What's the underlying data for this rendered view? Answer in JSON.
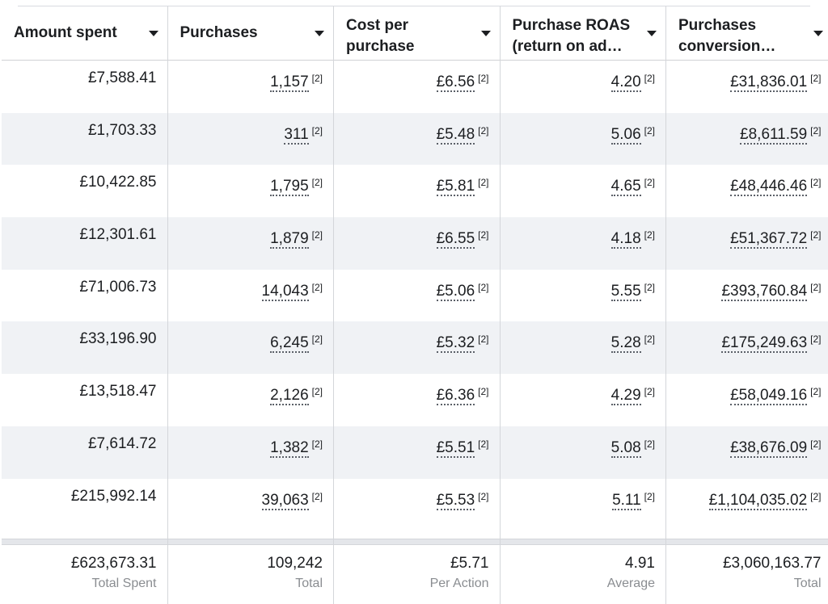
{
  "columns": [
    {
      "label_line1": "Amount spent",
      "label_line2": ""
    },
    {
      "label_line1": "Purchases",
      "label_line2": ""
    },
    {
      "label_line1": "Cost per",
      "label_line2": "purchase"
    },
    {
      "label_line1": "Purchase ROAS",
      "label_line2": "(return on ad…"
    },
    {
      "label_line1": "Purchases",
      "label_line2": "conversion…"
    }
  ],
  "footnote": "[2]",
  "rows": [
    {
      "spent": "£7,588.41",
      "purchases": "1,157",
      "cpp": "£6.56",
      "roas": "4.20",
      "conv": "£31,836.01"
    },
    {
      "spent": "£1,703.33",
      "purchases": "311",
      "cpp": "£5.48",
      "roas": "5.06",
      "conv": "£8,611.59"
    },
    {
      "spent": "£10,422.85",
      "purchases": "1,795",
      "cpp": "£5.81",
      "roas": "4.65",
      "conv": "£48,446.46"
    },
    {
      "spent": "£12,301.61",
      "purchases": "1,879",
      "cpp": "£6.55",
      "roas": "4.18",
      "conv": "£51,367.72"
    },
    {
      "spent": "£71,006.73",
      "purchases": "14,043",
      "cpp": "£5.06",
      "roas": "5.55",
      "conv": "£393,760.84"
    },
    {
      "spent": "£33,196.90",
      "purchases": "6,245",
      "cpp": "£5.32",
      "roas": "5.28",
      "conv": "£175,249.63"
    },
    {
      "spent": "£13,518.47",
      "purchases": "2,126",
      "cpp": "£6.36",
      "roas": "4.29",
      "conv": "£58,049.16"
    },
    {
      "spent": "£7,614.72",
      "purchases": "1,382",
      "cpp": "£5.51",
      "roas": "5.08",
      "conv": "£38,676.09"
    },
    {
      "spent": "£215,992.14",
      "purchases": "39,063",
      "cpp": "£5.53",
      "roas": "5.11",
      "conv": "£1,104,035.02"
    }
  ],
  "totals": [
    {
      "value": "£623,673.31",
      "label": "Total Spent"
    },
    {
      "value": "109,242",
      "label": "Total"
    },
    {
      "value": "£5.71",
      "label": "Per Action"
    },
    {
      "value": "4.91",
      "label": "Average"
    },
    {
      "value": "£3,060,163.77",
      "label": "Total"
    }
  ],
  "colors": {
    "row_shade": "#f0f2f5",
    "muted_text": "#8a8d91",
    "text": "#1c1e21"
  },
  "icons": {
    "column_menu": "caret-down-icon"
  }
}
